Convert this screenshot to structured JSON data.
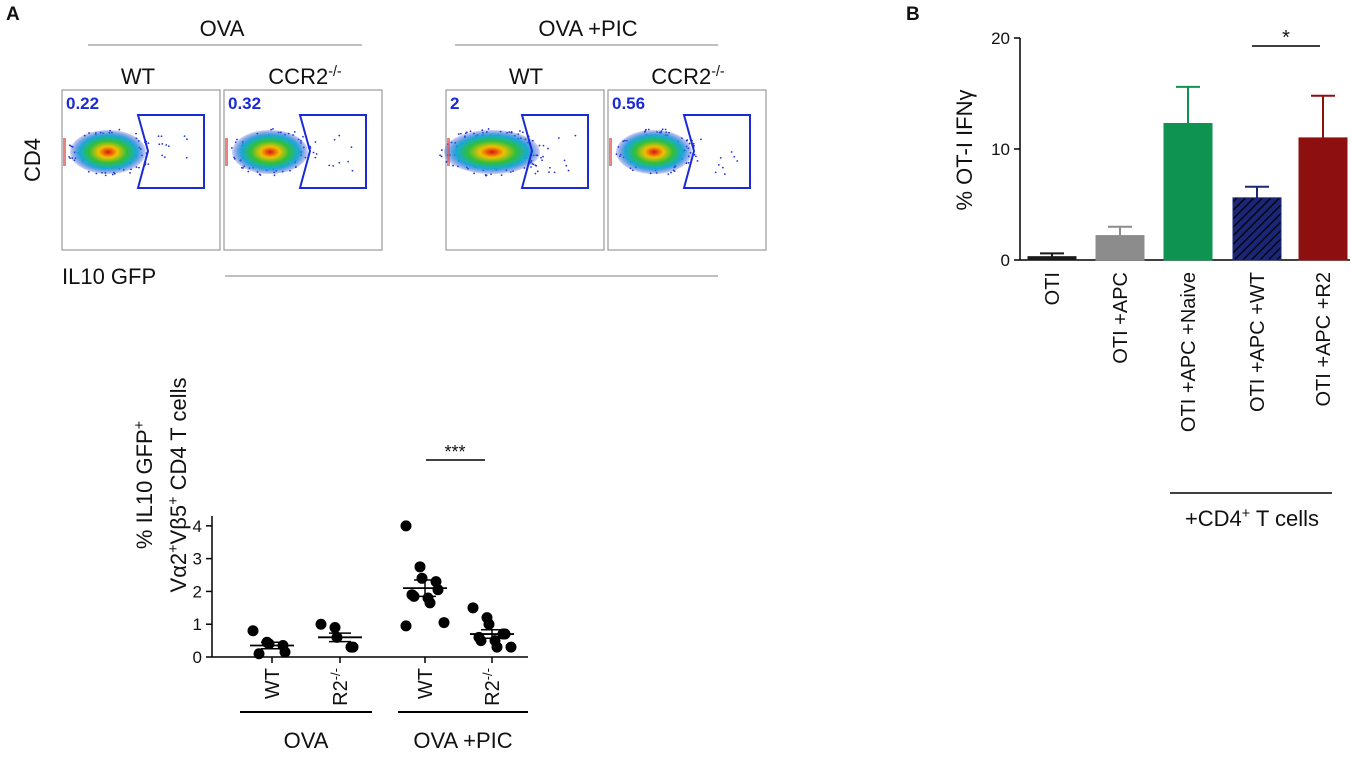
{
  "panel_labels": [
    "A",
    "B"
  ],
  "flow_panel": {
    "y_label": "CD4",
    "x_label": "IL10 GFP",
    "groups": [
      {
        "label": "OVA",
        "plots": [
          {
            "genotype": {
              "text": "WT"
            },
            "gate_percent": 0.22
          },
          {
            "genotype": {
              "text": "CCR2",
              "sup": "-/-"
            },
            "gate_percent": 0.32
          }
        ]
      },
      {
        "label": "OVA +PIC",
        "plots": [
          {
            "genotype": {
              "text": "WT"
            },
            "gate_percent": 2
          },
          {
            "genotype": {
              "text": "CCR2",
              "sup": "-/-"
            },
            "gate_percent": 0.56
          }
        ]
      }
    ]
  },
  "chart_data": [
    {
      "type": "scatter",
      "y_label": [
        [
          {
            "text": "% IL10 GFP"
          },
          {
            "text": "+",
            "sup": true
          }
        ],
        [
          {
            "text": "Vα2"
          },
          {
            "text": "+",
            "sup": true
          },
          {
            "text": "Vβ5"
          },
          {
            "text": "+",
            "sup": true
          },
          {
            "text": " CD4 T cells"
          }
        ]
      ],
      "categories": [
        {
          "text": "WT"
        },
        {
          "text": "R2",
          "sup": "-/-"
        },
        {
          "text": "WT"
        },
        {
          "text": "R2",
          "sup": "-/-"
        }
      ],
      "group_labels": [
        "OVA",
        "OVA +PIC"
      ],
      "points": [
        [
          0.8,
          0.45,
          0.4,
          0.35,
          0.15,
          0.1
        ],
        [
          1.0,
          0.9,
          0.6,
          0.3,
          0.3
        ],
        [
          4.0,
          2.75,
          2.4,
          2.3,
          2.05,
          1.9,
          1.85,
          1.8,
          1.65,
          1.05,
          0.95
        ],
        [
          1.5,
          1.2,
          1.0,
          0.7,
          0.7,
          0.6,
          0.5,
          0.5,
          0.3,
          0.3
        ]
      ],
      "means": [
        0.35,
        0.6,
        2.1,
        0.7
      ],
      "sems": [
        0.1,
        0.13,
        0.25,
        0.13
      ],
      "color": "#000000",
      "ylim": [
        0,
        4.3
      ],
      "yticks": [
        0,
        1,
        2,
        3,
        4
      ],
      "annotations": [
        {
          "text": "***"
        }
      ]
    },
    {
      "type": "bar",
      "y_label": "% OT-I  IFNγ",
      "categories": [
        "OTI",
        "OTI +APC",
        "OTI +APC +Naive",
        "OTI +APC +WT",
        "OTI +APC +R2"
      ],
      "values": [
        0.3,
        2.2,
        12.3,
        5.6,
        11.0
      ],
      "errors": [
        0.3,
        0.8,
        3.3,
        1.0,
        3.8
      ],
      "colors": [
        "#1a1a1a",
        "#8c8c8c",
        "#0e9350",
        "#1c2677",
        "#8e0f0f"
      ],
      "hatched": [
        false,
        false,
        false,
        true,
        false
      ],
      "ylim": [
        0,
        20
      ],
      "yticks": [
        0,
        10,
        20
      ],
      "group_labels": [
        [
          {
            "text": "+CD4"
          },
          {
            "text": "+",
            "sup": true
          },
          {
            "text": " T cells"
          }
        ]
      ],
      "annotations": [
        {
          "text": "*"
        }
      ]
    }
  ]
}
